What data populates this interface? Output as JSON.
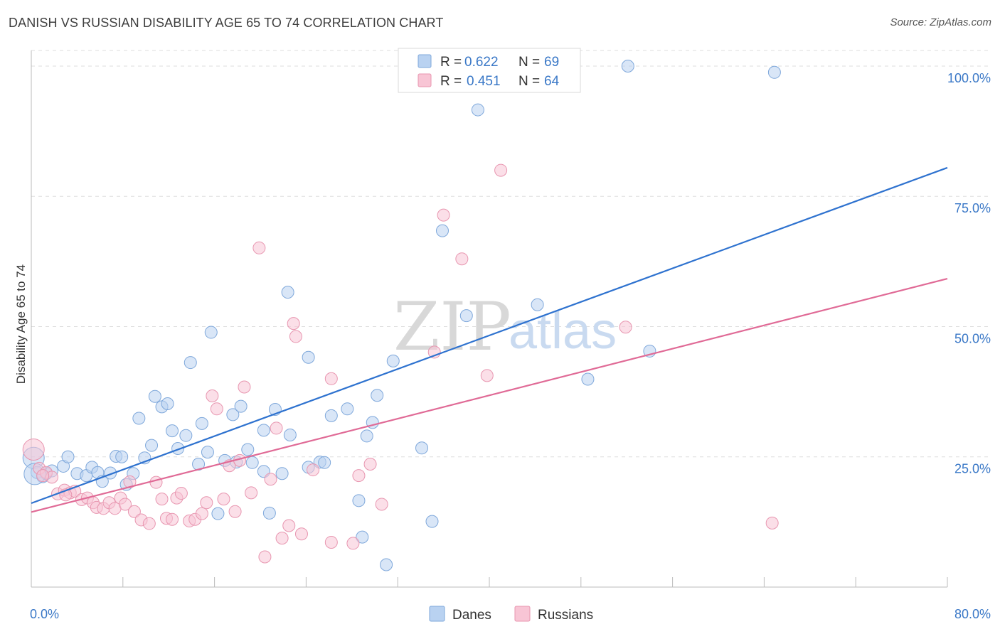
{
  "header": {
    "title": "DANISH VS RUSSIAN DISABILITY AGE 65 TO 74 CORRELATION CHART",
    "source": "Source: ZipAtlas.com"
  },
  "watermark": {
    "zip": "ZIP",
    "atlas": "atlas"
  },
  "legend": {
    "r_label": "R =",
    "n_label": "N =",
    "danes": {
      "r": "0.622",
      "n": "69"
    },
    "russians": {
      "r": "0.451",
      "n": "64"
    }
  },
  "bottom_legend": {
    "danes": "Danes",
    "russians": "Russians"
  },
  "colors": {
    "danes_fill": "#b9d2f1",
    "danes_stroke": "#7fa8db",
    "danes_line": "#2e72cf",
    "russians_fill": "#f8c5d5",
    "russians_stroke": "#e896b0",
    "russians_line": "#e06a96",
    "grid": "#dddddd",
    "tick_text": "#3a78c7"
  },
  "chart_data": {
    "type": "scatter",
    "title": "DANISH VS RUSSIAN DISABILITY AGE 65 TO 74 CORRELATION CHART",
    "xlabel": "",
    "ylabel": "Disability Age 65 to 74",
    "xlim": [
      0,
      80
    ],
    "ylim": [
      0,
      103
    ],
    "x_tick_labels": [
      "0.0%",
      "80.0%"
    ],
    "y_ticks": [
      25,
      50,
      75,
      100
    ],
    "y_tick_labels": [
      "25.0%",
      "50.0%",
      "75.0%",
      "100.0%"
    ],
    "grid": true,
    "series": [
      {
        "name": "Danes",
        "r": 0.622,
        "n": 69,
        "trend": {
          "x": [
            0,
            80
          ],
          "y": [
            16.1,
            80.5
          ]
        },
        "points": [
          [
            0.2,
            24.8
          ],
          [
            0.5,
            22.0
          ],
          [
            1.0,
            21.2
          ],
          [
            1.3,
            21.8
          ],
          [
            1.8,
            22.3
          ],
          [
            2.8,
            23.2
          ],
          [
            3.2,
            25.0
          ],
          [
            4.0,
            21.8
          ],
          [
            4.8,
            21.4
          ],
          [
            5.3,
            23.0
          ],
          [
            5.8,
            22.0
          ],
          [
            6.2,
            20.3
          ],
          [
            6.9,
            21.9
          ],
          [
            7.4,
            25.1
          ],
          [
            7.9,
            25.0
          ],
          [
            8.3,
            19.7
          ],
          [
            8.9,
            21.8
          ],
          [
            9.4,
            32.4
          ],
          [
            9.9,
            24.8
          ],
          [
            10.5,
            27.2
          ],
          [
            10.8,
            36.6
          ],
          [
            11.4,
            34.6
          ],
          [
            11.9,
            35.2
          ],
          [
            12.3,
            30.0
          ],
          [
            12.8,
            26.6
          ],
          [
            13.5,
            29.1
          ],
          [
            13.9,
            43.1
          ],
          [
            14.6,
            23.6
          ],
          [
            14.9,
            31.4
          ],
          [
            15.4,
            25.9
          ],
          [
            15.7,
            48.9
          ],
          [
            16.3,
            14.1
          ],
          [
            16.9,
            24.3
          ],
          [
            17.6,
            33.1
          ],
          [
            17.9,
            24.0
          ],
          [
            18.3,
            34.7
          ],
          [
            18.9,
            26.4
          ],
          [
            19.3,
            23.9
          ],
          [
            20.3,
            22.2
          ],
          [
            20.3,
            30.1
          ],
          [
            20.8,
            14.2
          ],
          [
            21.3,
            34.1
          ],
          [
            21.9,
            21.8
          ],
          [
            22.4,
            56.6
          ],
          [
            22.6,
            29.2
          ],
          [
            24.2,
            44.1
          ],
          [
            24.2,
            23.0
          ],
          [
            25.2,
            24.0
          ],
          [
            25.6,
            23.9
          ],
          [
            26.2,
            32.9
          ],
          [
            27.6,
            34.2
          ],
          [
            28.6,
            16.6
          ],
          [
            28.9,
            9.6
          ],
          [
            29.3,
            29.0
          ],
          [
            29.8,
            31.6
          ],
          [
            30.2,
            36.8
          ],
          [
            31.0,
            4.3
          ],
          [
            31.6,
            43.4
          ],
          [
            34.1,
            26.7
          ],
          [
            35.0,
            12.6
          ],
          [
            35.9,
            68.4
          ],
          [
            38.0,
            52.1
          ],
          [
            39.0,
            91.6
          ],
          [
            44.2,
            54.2
          ],
          [
            48.6,
            39.9
          ],
          [
            52.1,
            100.0
          ],
          [
            54.0,
            45.3
          ],
          [
            64.9,
            98.8
          ],
          [
            0.3,
            21.7
          ]
        ]
      },
      {
        "name": "Russians",
        "r": 0.451,
        "n": 64,
        "trend": {
          "x": [
            0,
            80
          ],
          "y": [
            14.4,
            59.2
          ]
        },
        "points": [
          [
            0.2,
            26.4
          ],
          [
            0.7,
            22.8
          ],
          [
            1.3,
            22.0
          ],
          [
            1.8,
            21.1
          ],
          [
            2.3,
            17.9
          ],
          [
            2.9,
            18.6
          ],
          [
            3.4,
            18.1
          ],
          [
            3.8,
            18.4
          ],
          [
            4.4,
            16.8
          ],
          [
            4.9,
            17.1
          ],
          [
            5.4,
            16.2
          ],
          [
            5.7,
            15.3
          ],
          [
            6.3,
            15.1
          ],
          [
            6.8,
            16.2
          ],
          [
            7.3,
            15.1
          ],
          [
            7.8,
            17.1
          ],
          [
            8.2,
            15.9
          ],
          [
            8.6,
            20.2
          ],
          [
            9.0,
            14.5
          ],
          [
            9.6,
            12.9
          ],
          [
            10.3,
            12.2
          ],
          [
            10.9,
            20.1
          ],
          [
            11.4,
            16.9
          ],
          [
            11.8,
            13.2
          ],
          [
            12.3,
            13.0
          ],
          [
            12.7,
            17.1
          ],
          [
            13.1,
            18.0
          ],
          [
            13.8,
            12.7
          ],
          [
            14.3,
            13.0
          ],
          [
            14.9,
            14.1
          ],
          [
            15.3,
            16.2
          ],
          [
            15.8,
            36.7
          ],
          [
            16.2,
            34.2
          ],
          [
            16.8,
            16.9
          ],
          [
            17.3,
            23.3
          ],
          [
            17.8,
            14.5
          ],
          [
            18.2,
            24.3
          ],
          [
            18.6,
            38.4
          ],
          [
            19.2,
            18.1
          ],
          [
            19.9,
            65.1
          ],
          [
            20.4,
            5.8
          ],
          [
            20.9,
            20.7
          ],
          [
            21.4,
            30.5
          ],
          [
            21.9,
            9.4
          ],
          [
            22.5,
            11.8
          ],
          [
            22.9,
            50.6
          ],
          [
            23.1,
            48.1
          ],
          [
            23.6,
            10.2
          ],
          [
            24.6,
            22.5
          ],
          [
            26.2,
            8.6
          ],
          [
            26.2,
            40.0
          ],
          [
            28.1,
            8.4
          ],
          [
            28.6,
            21.4
          ],
          [
            29.6,
            23.6
          ],
          [
            30.6,
            15.9
          ],
          [
            35.2,
            45.1
          ],
          [
            36.0,
            71.4
          ],
          [
            37.6,
            63.0
          ],
          [
            39.8,
            40.6
          ],
          [
            41.0,
            80.0
          ],
          [
            51.9,
            49.9
          ],
          [
            64.7,
            12.3
          ],
          [
            1.0,
            21.4
          ],
          [
            3.0,
            17.7
          ]
        ]
      }
    ]
  }
}
